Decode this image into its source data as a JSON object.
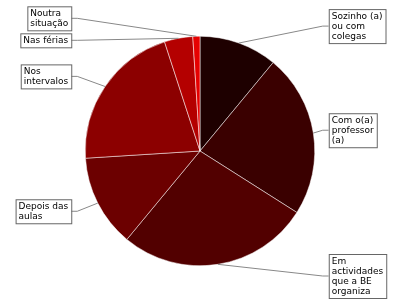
{
  "chart_data": {
    "type": "pie",
    "categories": [
      "Sozinho (a) ou com colegas",
      "Com o(a) professor (a)",
      "Em actividades que a BE organiza",
      "Depois das aulas",
      "Nos intervalos",
      "Nas férias",
      "Noutra situação"
    ],
    "values": [
      11,
      23,
      27,
      13,
      21,
      4,
      1
    ],
    "colors": [
      "#1e0000",
      "#3a0000",
      "#520000",
      "#6c0000",
      "#8c0000",
      "#b40000",
      "#e60000"
    ]
  }
}
